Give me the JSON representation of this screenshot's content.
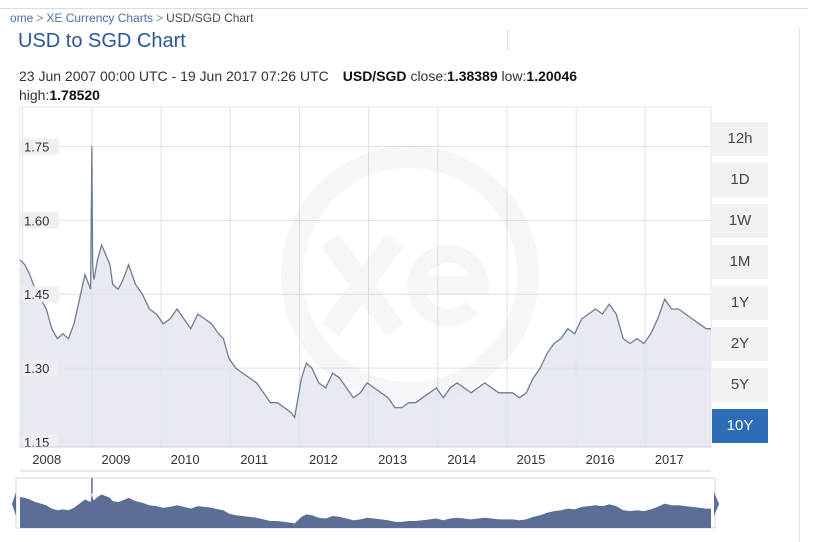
{
  "breadcrumb": {
    "home": "ome",
    "charts": "XE Currency Charts",
    "current": "USD/SGD Chart",
    "sep": ">"
  },
  "page_title": "USD to SGD Chart",
  "info": {
    "range": "23 Jun 2007 00:00 UTC - 19 Jun 2017 07:26 UTC",
    "pair": "USD/SGD",
    "close_label": "close:",
    "close_value": "1.38389",
    "low_label": "low:",
    "low_value": "1.20046",
    "high_label": "high:",
    "high_value": "1.78520"
  },
  "range_buttons": [
    {
      "label": "12h",
      "active": false
    },
    {
      "label": "1D",
      "active": false
    },
    {
      "label": "1W",
      "active": false
    },
    {
      "label": "1M",
      "active": false
    },
    {
      "label": "1Y",
      "active": false
    },
    {
      "label": "2Y",
      "active": false
    },
    {
      "label": "5Y",
      "active": false
    },
    {
      "label": "10Y",
      "active": true
    }
  ],
  "colors": {
    "line": "#6e7c96",
    "fill": "#dfe3ec",
    "navigator_fill": "#5c6e95",
    "grid": "#dde1e6",
    "active_button": "#2d6db5"
  },
  "chart_data": {
    "type": "area",
    "title": "USD to SGD Chart",
    "xlabel": "",
    "ylabel": "",
    "x_ticks": [
      "2008",
      "2009",
      "2010",
      "2011",
      "2012",
      "2013",
      "2014",
      "2015",
      "2016",
      "2017"
    ],
    "y_ticks": [
      "1.15",
      "1.30",
      "1.45",
      "1.60",
      "1.75"
    ],
    "ylim": [
      1.14,
      1.83
    ],
    "xlim": [
      2007.48,
      2017.47
    ],
    "grid": true,
    "series": [
      {
        "x": [
          2007.48,
          2007.55,
          2007.62,
          2007.7,
          2007.78,
          2007.86,
          2007.94,
          2008.02,
          2008.1,
          2008.18,
          2008.26,
          2008.34,
          2008.42,
          2008.5,
          2008.52,
          2008.53,
          2008.54,
          2008.55,
          2008.6,
          2008.66,
          2008.72,
          2008.78,
          2008.82,
          2008.9,
          2008.97,
          2009.05,
          2009.15,
          2009.25,
          2009.35,
          2009.45,
          2009.55,
          2009.65,
          2009.75,
          2009.85,
          2009.95,
          2010.05,
          2010.15,
          2010.25,
          2010.35,
          2010.42,
          2010.5,
          2010.6,
          2010.7,
          2010.8,
          2010.9,
          2011.0,
          2011.1,
          2011.2,
          2011.3,
          2011.4,
          2011.45,
          2011.55,
          2011.62,
          2011.7,
          2011.8,
          2011.9,
          2012.0,
          2012.1,
          2012.2,
          2012.3,
          2012.4,
          2012.5,
          2012.6,
          2012.7,
          2012.8,
          2012.9,
          2013.0,
          2013.1,
          2013.2,
          2013.3,
          2013.4,
          2013.5,
          2013.6,
          2013.7,
          2013.8,
          2013.9,
          2014.0,
          2014.1,
          2014.2,
          2014.3,
          2014.4,
          2014.5,
          2014.6,
          2014.7,
          2014.8,
          2014.9,
          2015.0,
          2015.1,
          2015.2,
          2015.3,
          2015.4,
          2015.5,
          2015.6,
          2015.7,
          2015.8,
          2015.9,
          2016.0,
          2016.1,
          2016.2,
          2016.3,
          2016.4,
          2016.5,
          2016.6,
          2016.7,
          2016.8,
          2016.9,
          2017.0,
          2017.1,
          2017.2,
          2017.3,
          2017.4,
          2017.47
        ],
        "values": [
          1.52,
          1.51,
          1.49,
          1.46,
          1.44,
          1.42,
          1.38,
          1.36,
          1.37,
          1.36,
          1.39,
          1.44,
          1.49,
          1.46,
          1.75,
          1.52,
          1.49,
          1.48,
          1.52,
          1.55,
          1.53,
          1.51,
          1.47,
          1.46,
          1.48,
          1.51,
          1.47,
          1.45,
          1.42,
          1.41,
          1.39,
          1.4,
          1.42,
          1.4,
          1.38,
          1.41,
          1.4,
          1.39,
          1.37,
          1.36,
          1.32,
          1.3,
          1.29,
          1.28,
          1.27,
          1.25,
          1.23,
          1.23,
          1.22,
          1.21,
          1.2,
          1.28,
          1.31,
          1.3,
          1.27,
          1.26,
          1.29,
          1.28,
          1.26,
          1.24,
          1.25,
          1.27,
          1.26,
          1.25,
          1.24,
          1.22,
          1.22,
          1.23,
          1.23,
          1.24,
          1.25,
          1.26,
          1.24,
          1.26,
          1.27,
          1.26,
          1.25,
          1.26,
          1.27,
          1.26,
          1.25,
          1.25,
          1.25,
          1.24,
          1.25,
          1.28,
          1.3,
          1.33,
          1.35,
          1.36,
          1.38,
          1.37,
          1.4,
          1.41,
          1.42,
          1.41,
          1.43,
          1.41,
          1.36,
          1.35,
          1.36,
          1.35,
          1.37,
          1.4,
          1.44,
          1.42,
          1.42,
          1.41,
          1.4,
          1.39,
          1.38,
          1.38
        ]
      }
    ]
  }
}
